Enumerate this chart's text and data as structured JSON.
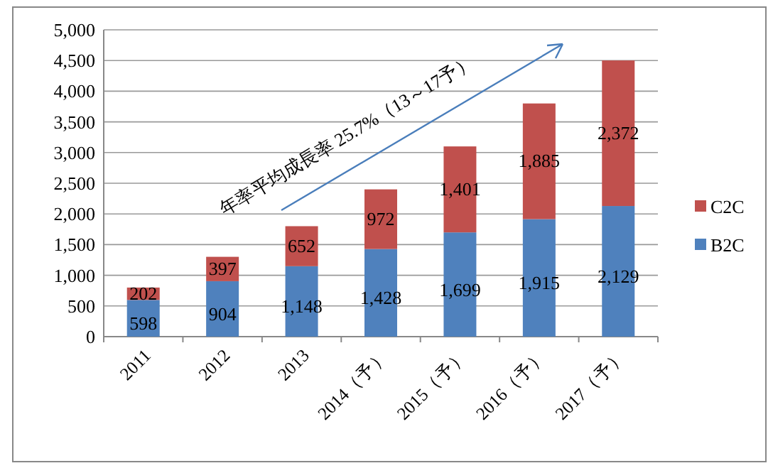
{
  "chart_data": {
    "type": "bar",
    "stacked": true,
    "categories": [
      "2011",
      "2012",
      "2013",
      "2014（予）",
      "2015（予）",
      "2016（予）",
      "2017（予）"
    ],
    "series": [
      {
        "name": "B2C",
        "color": "#4f81bd",
        "values": [
          598,
          904,
          1148,
          1428,
          1699,
          1915,
          2129
        ],
        "value_labels": [
          "598",
          "904",
          "1,148",
          "1,428",
          "1,699",
          "1,915",
          "2,129"
        ]
      },
      {
        "name": "C2C",
        "color": "#c0504d",
        "values": [
          202,
          397,
          652,
          972,
          1401,
          1885,
          2372
        ],
        "value_labels": [
          "202",
          "397",
          "652",
          "972",
          "1,401",
          "1,885",
          "2,372"
        ]
      }
    ],
    "ylim": [
      0,
      5000
    ],
    "yticks": [
      0,
      {
        "value": 500,
        "label": "500"
      },
      {
        "value": 1000,
        "label": "1,000"
      },
      {
        "value": 1500,
        "label": "1,500"
      },
      {
        "value": 2000,
        "label": "2,000"
      },
      {
        "value": 2500,
        "label": "2,500"
      },
      {
        "value": 3000,
        "label": "3,000"
      },
      {
        "value": 3500,
        "label": "3,500"
      },
      {
        "value": 4000,
        "label": "4,000"
      },
      {
        "value": 4500,
        "label": "4,500"
      },
      {
        "value": 5000,
        "label": "5,000"
      }
    ],
    "grid": "y",
    "legend": "right",
    "annotations": [
      "年率平均成長率 25.7%（13～17予）"
    ]
  }
}
